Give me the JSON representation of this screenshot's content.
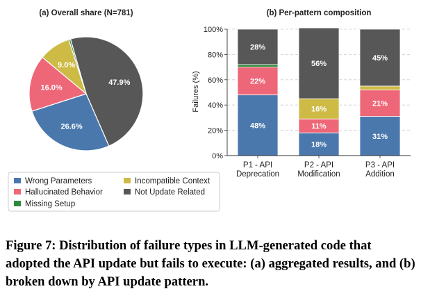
{
  "colors": {
    "wrong_parameters": "#4a78ad",
    "hallucinated_behavior": "#ee6778",
    "missing_setup": "#2e8b3a",
    "incompatible_context": "#cdbb45",
    "not_update_related": "#575757"
  },
  "legend": {
    "items": [
      {
        "label": "Wrong Parameters",
        "color": "#4a78ad"
      },
      {
        "label": "Incompatible Context",
        "color": "#cdbb45"
      },
      {
        "label": "Hallucinated Behavior",
        "color": "#ee6778"
      },
      {
        "label": "Not Update Related",
        "color": "#575757"
      },
      {
        "label": "Missing Setup",
        "color": "#2e8b3a"
      }
    ]
  },
  "chart_data": [
    {
      "type": "pie",
      "title": "(a) Overall share (N=781)",
      "slices": [
        {
          "name": "Not Update Related",
          "value": 47.9,
          "label": "47.9%",
          "color": "#575757"
        },
        {
          "name": "Wrong Parameters",
          "value": 26.6,
          "label": "26.6%",
          "color": "#4a78ad"
        },
        {
          "name": "Hallucinated Behavior",
          "value": 16.0,
          "label": "16.0%",
          "color": "#ee6778"
        },
        {
          "name": "Incompatible Context",
          "value": 9.0,
          "label": "9.0%",
          "color": "#cdbb45"
        },
        {
          "name": "Missing Setup",
          "value": 0.5,
          "label": "",
          "color": "#2e8b3a"
        }
      ]
    },
    {
      "type": "bar",
      "stacked": true,
      "title": "(b) Per-pattern composition",
      "ylabel": "Failures (%)",
      "ylim": [
        0,
        100
      ],
      "yticks": [
        "0%",
        "20%",
        "40%",
        "60%",
        "80%",
        "100%"
      ],
      "grid": true,
      "categories": [
        [
          "P1 - API",
          "Deprecation"
        ],
        [
          "P2 - API",
          "Modification"
        ],
        [
          "P3 - API",
          "Addition"
        ]
      ],
      "series": [
        {
          "name": "Wrong Parameters",
          "color": "#4a78ad",
          "values": [
            48,
            18,
            31
          ],
          "labels": [
            "48%",
            "18%",
            "31%"
          ]
        },
        {
          "name": "Hallucinated Behavior",
          "color": "#ee6778",
          "values": [
            22,
            11,
            21
          ],
          "labels": [
            "22%",
            "11%",
            "21%"
          ]
        },
        {
          "name": "Missing Setup",
          "color": "#2e8b3a",
          "values": [
            2,
            0,
            0
          ],
          "labels": [
            "",
            "",
            ""
          ]
        },
        {
          "name": "Incompatible Context",
          "color": "#cdbb45",
          "values": [
            0,
            16,
            3
          ],
          "labels": [
            "",
            "16%",
            ""
          ]
        },
        {
          "name": "Not Update Related",
          "color": "#575757",
          "values": [
            28,
            56,
            45
          ],
          "labels": [
            "28%",
            "56%",
            "45%"
          ]
        }
      ]
    }
  ],
  "caption": "Figure 7: Distribution of failure types in LLM-generated code that adopted the API update but fails to execute: (a) aggregated results, and (b) broken down by API update pattern."
}
